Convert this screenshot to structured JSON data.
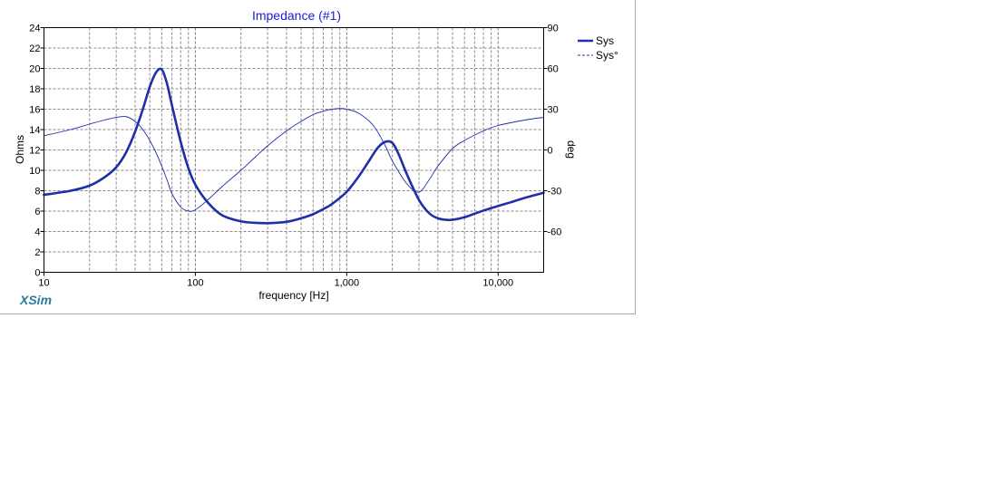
{
  "app": {
    "brand": "XSim"
  },
  "chart_data": {
    "type": "line",
    "title": "Impedance (#1)",
    "xlabel": "frequency [Hz]",
    "ylabel": "Ohms",
    "y2label": "deg",
    "xscale": "log",
    "xlim": [
      10,
      20000
    ],
    "ylim": [
      0,
      24
    ],
    "y2lim": [
      -90,
      90
    ],
    "x_ticks": [
      10,
      100,
      1000,
      10000
    ],
    "x_tick_labels": [
      "10",
      "100",
      "1,000",
      "10,000"
    ],
    "y_ticks": [
      0,
      2,
      4,
      6,
      8,
      10,
      12,
      14,
      16,
      18,
      20,
      22,
      24
    ],
    "y_tick_labels": [
      "0",
      "2",
      "4",
      "6",
      "8",
      "10",
      "12",
      "14",
      "16",
      "18",
      "20",
      "22",
      "24"
    ],
    "y2_ticks": [
      -60,
      -30,
      0,
      30,
      60,
      90
    ],
    "y2_tick_labels": [
      "-60",
      "-30",
      "0",
      "30",
      "60",
      "90"
    ],
    "grid": true,
    "legend_position": "top-right",
    "series": [
      {
        "name": "Sys",
        "axis": "left",
        "style": "solid-thick",
        "color": "#1f2fa8",
        "x": [
          10,
          15,
          20,
          25,
          30,
          35,
          40,
          45,
          50,
          55,
          60,
          65,
          70,
          80,
          90,
          100,
          120,
          150,
          200,
          250,
          300,
          400,
          500,
          600,
          700,
          800,
          1000,
          1200,
          1400,
          1600,
          1800,
          2000,
          2200,
          2500,
          3000,
          3500,
          4000,
          4500,
          5000,
          6000,
          7000,
          8000,
          10000,
          12000,
          15000,
          20000
        ],
        "y": [
          7.6,
          8.0,
          8.5,
          9.3,
          10.3,
          11.8,
          13.8,
          16.0,
          18.2,
          19.6,
          19.9,
          18.5,
          16.4,
          12.8,
          10.2,
          8.6,
          6.9,
          5.6,
          5.0,
          4.85,
          4.82,
          4.95,
          5.3,
          5.7,
          6.2,
          6.7,
          7.9,
          9.4,
          10.9,
          12.2,
          12.8,
          12.7,
          11.6,
          9.6,
          7.1,
          5.8,
          5.3,
          5.15,
          5.15,
          5.4,
          5.75,
          6.05,
          6.5,
          6.85,
          7.3,
          7.8
        ]
      },
      {
        "name": "Sys°",
        "axis": "right",
        "style": "thin",
        "color": "#1f2fa8",
        "x": [
          10,
          15,
          20,
          25,
          30,
          35,
          40,
          45,
          50,
          55,
          60,
          65,
          70,
          80,
          90,
          100,
          120,
          150,
          200,
          250,
          300,
          400,
          500,
          600,
          700,
          800,
          900,
          1000,
          1200,
          1500,
          1800,
          2000,
          2500,
          3000,
          3500,
          4000,
          5000,
          6000,
          8000,
          10000,
          15000,
          20000
        ],
        "y": [
          10.5,
          15,
          19,
          22,
          24,
          24.5,
          21,
          15,
          7,
          -2,
          -12,
          -22,
          -32,
          -42,
          -45,
          -44,
          -37,
          -27,
          -15,
          -5,
          3,
          14,
          21,
          26,
          28.5,
          30,
          30.5,
          30,
          27,
          18,
          3,
          -8,
          -25,
          -31,
          -22,
          -12,
          1,
          7,
          14,
          18,
          22,
          24
        ]
      }
    ]
  }
}
